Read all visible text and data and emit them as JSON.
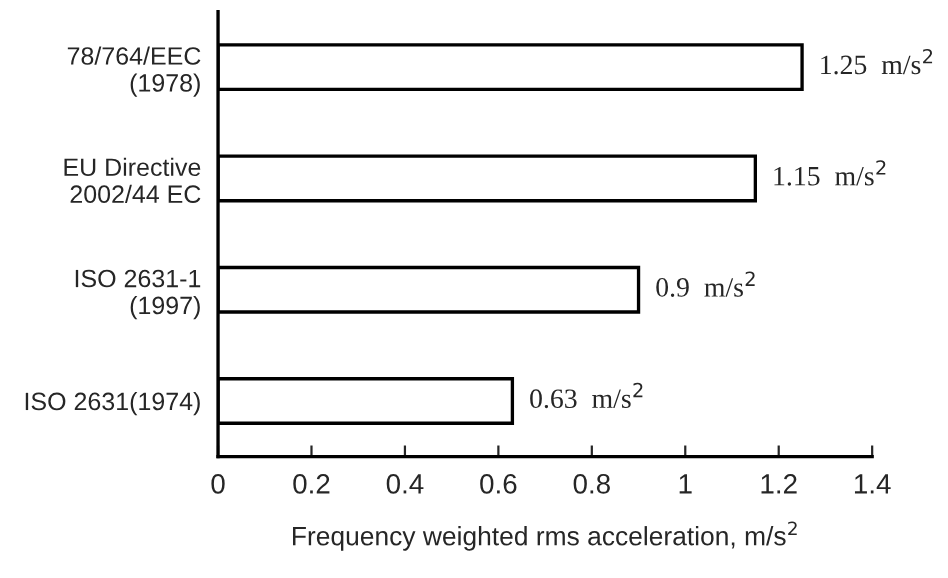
{
  "chart_data": {
    "type": "bar",
    "orientation": "horizontal",
    "categories": [
      "78/764/EEC\n(1978)",
      "EU Directive\n2002/44 EC",
      "ISO 2631-1\n(1997)",
      "ISO 2631(1974)"
    ],
    "values": [
      1.25,
      1.15,
      0.9,
      0.63
    ],
    "value_labels": [
      "1.25  m/s$^{2}$",
      "1.15  m/s$^{2}$",
      "0.9  m/s$^{2}$",
      "0.63  m/s$^{2}$"
    ],
    "color": "#ffffff",
    "xlabel": "Frequency weighted rms acceleration, m/s$^{2}$",
    "xlim": [
      0,
      1.4
    ],
    "xticks": [
      0,
      0.2,
      0.4,
      0.6,
      0.8,
      1,
      1.2,
      1.4
    ],
    "grid": false,
    "legend": false
  }
}
